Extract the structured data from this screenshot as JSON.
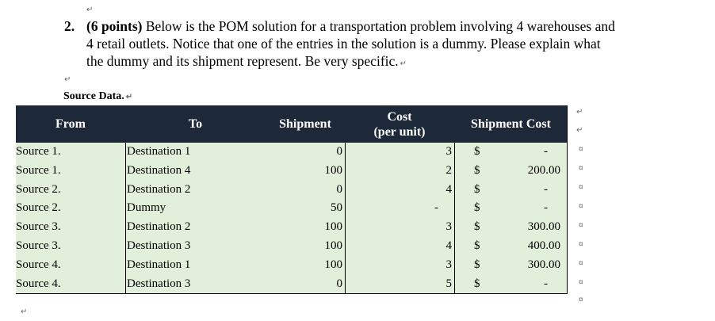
{
  "question": {
    "number": "2.",
    "points": "(6 points)",
    "line1": "Below is the POM solution for a transportation problem involving 4 warehouses and",
    "line2": "4 retail outlets.  Notice that one of the entries in the solution is a dummy.   Please explain what",
    "line3": "the dummy and its shipment represent.  Be very specific."
  },
  "source_label": "Source Data.",
  "table": {
    "headers": {
      "from": "From",
      "to": "To",
      "shipment": "Shipment",
      "cost_line1": "Cost",
      "cost_line2": "(per unit)",
      "shipment_cost": "Shipment Cost"
    },
    "rows": [
      {
        "from": "Source 1.",
        "to": "Destination 1",
        "shipment": "0",
        "cost": "3",
        "dollar": "$",
        "total": "-"
      },
      {
        "from": "Source 1.",
        "to": "Destination 4",
        "shipment": "100",
        "cost": "2",
        "dollar": "$",
        "total": "200.00"
      },
      {
        "from": "Source 2.",
        "to": "Destination 2",
        "shipment": "0",
        "cost": "4",
        "dollar": "$",
        "total": "-"
      },
      {
        "from": "Source 2.",
        "to": "Dummy",
        "shipment": "50",
        "cost": "-",
        "dollar": "$",
        "total": "-"
      },
      {
        "from": "Source 3.",
        "to": "Destination 2",
        "shipment": "100",
        "cost": "3",
        "dollar": "$",
        "total": "300.00"
      },
      {
        "from": "Source 3.",
        "to": "Destination 3",
        "shipment": "100",
        "cost": "4",
        "dollar": "$",
        "total": "400.00"
      },
      {
        "from": "Source 4.",
        "to": "Destination 1",
        "shipment": "100",
        "cost": "3",
        "dollar": "$",
        "total": "300.00"
      },
      {
        "from": "Source 4.",
        "to": "Destination 3",
        "shipment": "0",
        "cost": "5",
        "dollar": "$",
        "total": "-"
      }
    ]
  },
  "marks": {
    "return": "↵",
    "cell_end": "¤"
  }
}
